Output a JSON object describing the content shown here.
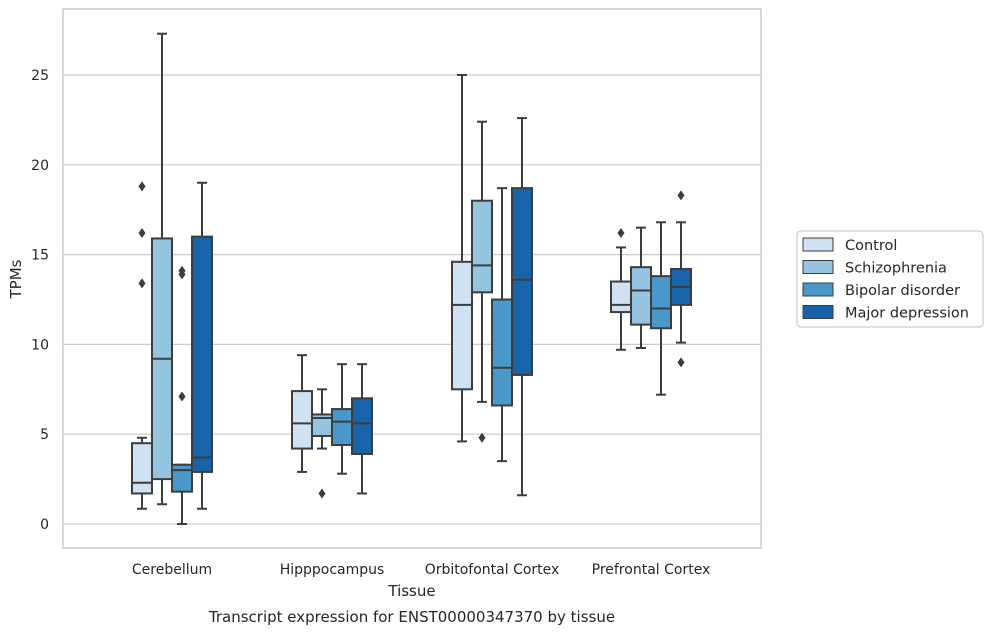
{
  "chart_data": {
    "type": "boxplot",
    "title": "Transcript expression for ENST00000347370 by tissue",
    "xlabel": "Tissue",
    "ylabel": "TPMs",
    "ylim": [
      -1.3,
      28.6
    ],
    "yticks": [
      0,
      5,
      10,
      15,
      20,
      25
    ],
    "grid": true,
    "legend_position": "right",
    "categories": [
      "Cerebellum",
      "Hipppocampus",
      "Orbitofontal Cortex",
      "Prefrontal Cortex"
    ],
    "series": [
      {
        "name": "Control",
        "color": "#d0e1f2",
        "boxes": [
          {
            "whislo": 0.85,
            "q1": 1.7,
            "med": 2.3,
            "q3": 4.5,
            "whishi": 4.8,
            "fliers": [
              13.4,
              16.2,
              18.8
            ]
          },
          {
            "whislo": 2.9,
            "q1": 4.2,
            "med": 5.6,
            "q3": 7.4,
            "whishi": 9.4,
            "fliers": []
          },
          {
            "whislo": 4.6,
            "q1": 7.5,
            "med": 12.2,
            "q3": 14.6,
            "whishi": 25.0,
            "fliers": []
          },
          {
            "whislo": 9.7,
            "q1": 11.8,
            "med": 12.2,
            "q3": 13.5,
            "whishi": 15.4,
            "fliers": [
              16.2
            ]
          }
        ]
      },
      {
        "name": "Schizophrenia",
        "color": "#94c4df",
        "boxes": [
          {
            "whislo": 1.1,
            "q1": 2.5,
            "med": 9.2,
            "q3": 15.9,
            "whishi": 27.3,
            "fliers": []
          },
          {
            "whislo": 4.2,
            "q1": 4.9,
            "med": 5.9,
            "q3": 6.1,
            "whishi": 7.5,
            "fliers": [
              1.7
            ]
          },
          {
            "whislo": 6.8,
            "q1": 12.9,
            "med": 14.4,
            "q3": 18.0,
            "whishi": 22.4,
            "fliers": [
              4.8
            ]
          },
          {
            "whislo": 9.8,
            "q1": 11.1,
            "med": 13.0,
            "q3": 14.3,
            "whishi": 16.5,
            "fliers": []
          }
        ]
      },
      {
        "name": "Bipolar disorder",
        "color": "#4a98c9",
        "boxes": [
          {
            "whislo": 0.0,
            "q1": 1.8,
            "med": 3.0,
            "q3": 3.3,
            "whishi": 3.3,
            "fliers": [
              7.1,
              13.9,
              14.1
            ]
          },
          {
            "whislo": 2.8,
            "q1": 4.4,
            "med": 5.7,
            "q3": 6.4,
            "whishi": 8.9,
            "fliers": []
          },
          {
            "whislo": 3.5,
            "q1": 6.6,
            "med": 8.7,
            "q3": 12.5,
            "whishi": 18.7,
            "fliers": []
          },
          {
            "whislo": 7.2,
            "q1": 10.9,
            "med": 12.0,
            "q3": 13.8,
            "whishi": 16.8,
            "fliers": []
          }
        ]
      },
      {
        "name": "Major depression",
        "color": "#1764ab",
        "boxes": [
          {
            "whislo": 0.85,
            "q1": 2.9,
            "med": 3.7,
            "q3": 16.0,
            "whishi": 19.0,
            "fliers": []
          },
          {
            "whislo": 1.7,
            "q1": 3.9,
            "med": 5.6,
            "q3": 7.0,
            "whishi": 8.9,
            "fliers": []
          },
          {
            "whislo": 1.6,
            "q1": 8.3,
            "med": 13.6,
            "q3": 18.7,
            "whishi": 22.6,
            "fliers": []
          },
          {
            "whislo": 10.1,
            "q1": 12.2,
            "med": 13.2,
            "q3": 14.2,
            "whishi": 16.8,
            "fliers": [
              9.0,
              18.3
            ]
          }
        ]
      }
    ]
  },
  "colors": {
    "grid": "#cccccc",
    "frame": "#cccccc",
    "box_edge": "#3d3d3d",
    "legend_border": "#cccccc"
  }
}
